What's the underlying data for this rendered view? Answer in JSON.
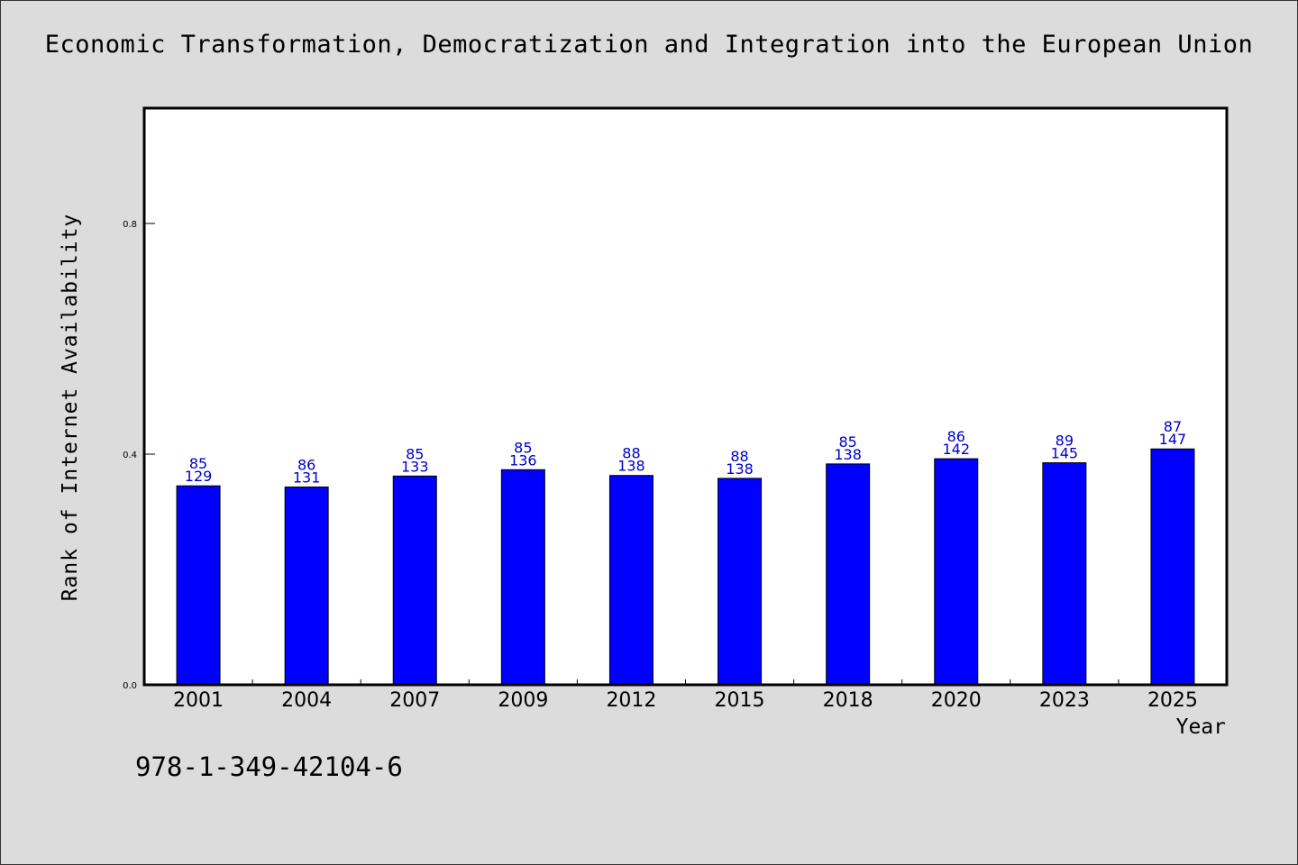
{
  "chart_data": {
    "type": "bar",
    "title": "Economic Transformation, Democratization and Integration into the European Union",
    "xlabel": "Year",
    "ylabel": "Rank of Internet Availability",
    "ylim": [
      0,
      1.0
    ],
    "yticks": [
      "0.0",
      "0.4",
      "0.8"
    ],
    "categories": [
      "2001",
      "2004",
      "2007",
      "2009",
      "2012",
      "2015",
      "2018",
      "2020",
      "2023",
      "2025"
    ],
    "values": [
      0.345,
      0.343,
      0.362,
      0.373,
      0.363,
      0.358,
      0.383,
      0.392,
      0.385,
      0.409
    ],
    "label_top": [
      "85",
      "86",
      "85",
      "85",
      "88",
      "88",
      "85",
      "86",
      "89",
      "87"
    ],
    "label_bottom": [
      "129",
      "131",
      "133",
      "136",
      "138",
      "138",
      "138",
      "142",
      "145",
      "147"
    ],
    "bar_color": "#0000ff",
    "label_color": "#0000cc",
    "grid": false,
    "legend": "none"
  },
  "footer": {
    "code": "978-1-349-42104-6"
  }
}
